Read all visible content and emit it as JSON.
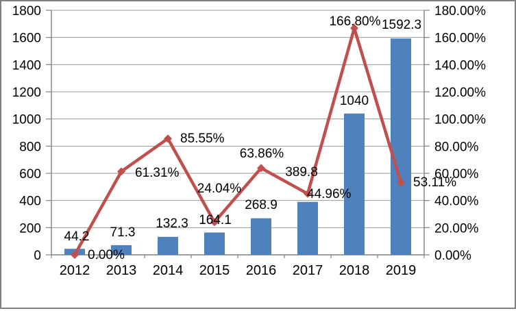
{
  "chart_data": {
    "type": "combo",
    "categories": [
      "2012",
      "2013",
      "2014",
      "2015",
      "2016",
      "2017",
      "2018",
      "2019"
    ],
    "series": [
      {
        "name": "bars",
        "type": "bar",
        "axis": "left",
        "color": "#4F81BD",
        "values": [
          44.2,
          71.3,
          132.3,
          164.1,
          268.9,
          389.8,
          1040,
          1592.3
        ],
        "labels": [
          "44.2",
          "71.3",
          "132.3",
          "164.1",
          "268.9",
          "389.8",
          "1040",
          "1592.3"
        ]
      },
      {
        "name": "line",
        "type": "line",
        "axis": "right",
        "color": "#C0504D",
        "values": [
          0.0,
          61.31,
          85.55,
          24.04,
          63.86,
          44.96,
          166.8,
          53.11
        ],
        "labels": [
          "0.00%",
          "61.31%",
          "85.55%",
          "24.04%",
          "63.86%",
          "44.96%",
          "166.80%",
          "53.11%"
        ]
      }
    ],
    "left_axis": {
      "min": 0,
      "max": 1800,
      "step": 200,
      "tick_labels": [
        "0",
        "200",
        "400",
        "600",
        "800",
        "1000",
        "1200",
        "1400",
        "1600",
        "1800"
      ]
    },
    "right_axis": {
      "min": 0,
      "max": 180,
      "step": 20,
      "tick_labels": [
        "0.00%",
        "20.00%",
        "40.00%",
        "60.00%",
        "80.00%",
        "100.00%",
        "120.00%",
        "140.00%",
        "160.00%",
        "180.00%"
      ]
    },
    "grid": true,
    "legend": "none",
    "title": ""
  },
  "colors": {
    "bar": "#4F81BD",
    "line": "#C0504D",
    "gridline": "#999999",
    "axis": "#808080",
    "text": "#000000",
    "frame": "#808080",
    "background": "#FFFFFF"
  }
}
